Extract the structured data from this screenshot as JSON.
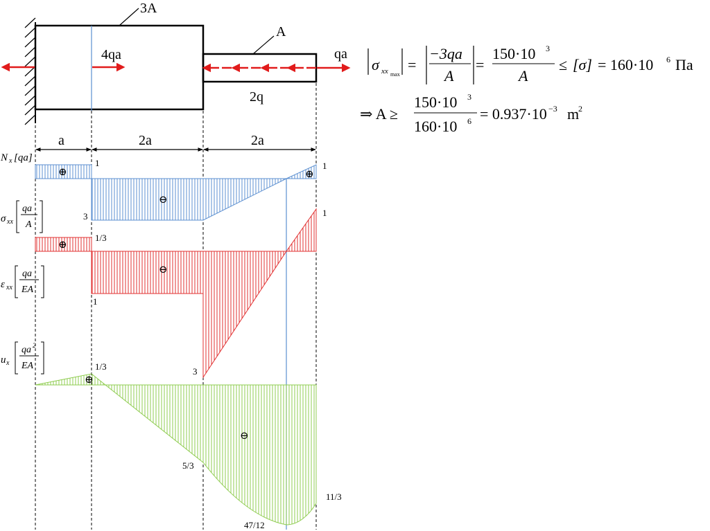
{
  "colors": {
    "axial_force": "#5b8fd0",
    "stress_strain": "#e23030",
    "displacement": "#8fcc50",
    "load_arrow": "#e11b1b",
    "guide_line": "#5b8fd0"
  },
  "bar": {
    "big_section_label": "3A",
    "small_section_label": "A",
    "point_load_label": "4qa",
    "end_load_label": "qa",
    "distributed_load_label": "2q"
  },
  "dimensions": [
    "a",
    "2a",
    "2a"
  ],
  "formulas": {
    "line1": {
      "sigma": "σ",
      "sub": "xx",
      "subsub": "max",
      "num_mid": "−3qa",
      "den_mid": "A",
      "num_right": "150·10",
      "num_right_exp": "3",
      "den_right": "A",
      "leq": "≤",
      "bracket_sigma": "[σ]",
      "equals_value": "= 160·10",
      "value_exp": "6",
      "unit": "Па"
    },
    "line2": {
      "implies": "⇒ A ≥",
      "num": "150·10",
      "num_exp": "3",
      "den": "160·10",
      "den_exp": "6",
      "result": "= 0.937·10",
      "result_exp": "−3",
      "unit": "m",
      "unit_exp": "2"
    }
  },
  "chart_data": {
    "type": "area",
    "x_segments": [
      {
        "label": "a",
        "length": 1
      },
      {
        "label": "2a",
        "length": 2
      },
      {
        "label": "2a",
        "length": 2
      }
    ],
    "diagrams": [
      {
        "name": "N_x",
        "axis_label": "N",
        "axis_sub": "x",
        "unit": "[qa]",
        "points": [
          [
            0,
            1
          ],
          [
            1,
            1
          ],
          [
            1,
            -3
          ],
          [
            3,
            -3
          ],
          [
            5,
            1
          ]
        ],
        "value_labels": [
          "1",
          "3",
          "1"
        ],
        "signs": [
          "⊕",
          "⊖",
          "⊕"
        ]
      },
      {
        "name": "sigma_xx",
        "axis_label": "σ",
        "axis_sub": "xx",
        "unit_num": "qa",
        "unit_den": "A",
        "points": [
          [
            0,
            0.3333
          ],
          [
            1,
            0.3333
          ],
          [
            1,
            -1
          ],
          [
            3,
            -1
          ],
          [
            3,
            -3
          ],
          [
            5,
            1
          ]
        ],
        "value_labels": [
          "1/3",
          "1",
          "3",
          "1"
        ],
        "signs": [
          "⊕",
          "⊖"
        ]
      },
      {
        "name": "epsilon_xx",
        "axis_label": "ε",
        "axis_sub": "xx",
        "unit_num": "qa",
        "unit_den": "EA",
        "points": [],
        "value_labels": [],
        "signs": []
      },
      {
        "name": "u_x",
        "axis_label": "u",
        "axis_sub": "x",
        "unit_num": "qa",
        "unit_num_exp": "2",
        "unit_den": "EA",
        "points": [
          [
            0,
            0
          ],
          [
            1,
            0.3333
          ],
          [
            1.25,
            0
          ],
          [
            3,
            -1.6667
          ],
          [
            4.5,
            -3.9167
          ],
          [
            5,
            -3.6667
          ]
        ],
        "value_labels": [
          "1/3",
          "5/3",
          "47/12",
          "11/3"
        ],
        "signs": [
          "⊕",
          "⊖"
        ]
      }
    ]
  }
}
